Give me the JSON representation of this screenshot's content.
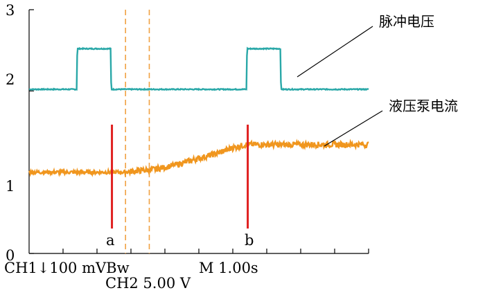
{
  "chart_data": {
    "type": "line",
    "y_ticks": [
      "0",
      "1",
      "2",
      "3"
    ],
    "ylim": [
      0,
      3
    ],
    "x_divisions": 10,
    "series": [
      {
        "name": "脉冲电压",
        "color": "#2aa8a8",
        "x": [
          0,
          0.7,
          0.71,
          1.2,
          1.21,
          3.2,
          3.21,
          3.7,
          3.71,
          5
        ],
        "y": [
          2.02,
          2.02,
          2.52,
          2.52,
          2.02,
          2.02,
          2.52,
          2.52,
          2.02,
          2.02
        ]
      },
      {
        "name": "液压泵电流",
        "color": "#f0961e",
        "x": [
          0,
          1.4,
          1.5,
          1.8,
          2.0,
          2.2,
          2.5,
          2.8,
          3.0,
          3.2,
          3.5,
          4.0,
          4.5,
          5
        ],
        "y": [
          1.0,
          1.0,
          1.01,
          1.03,
          1.06,
          1.1,
          1.17,
          1.24,
          1.3,
          1.34,
          1.34,
          1.34,
          1.34,
          1.34
        ]
      }
    ],
    "markers": [
      {
        "label": "a",
        "x": 1.22,
        "color": "#e02020"
      },
      {
        "label": "b",
        "x": 3.22,
        "color": "#e02020"
      }
    ],
    "dashed_lines": {
      "x": [
        1.42,
        1.77
      ],
      "color": "#f0a040"
    },
    "bottom_labels": {
      "ch1": "CH1↓100 mVBw",
      "ch2": "CH2 5.00 V",
      "time": "M 1.00s"
    }
  }
}
